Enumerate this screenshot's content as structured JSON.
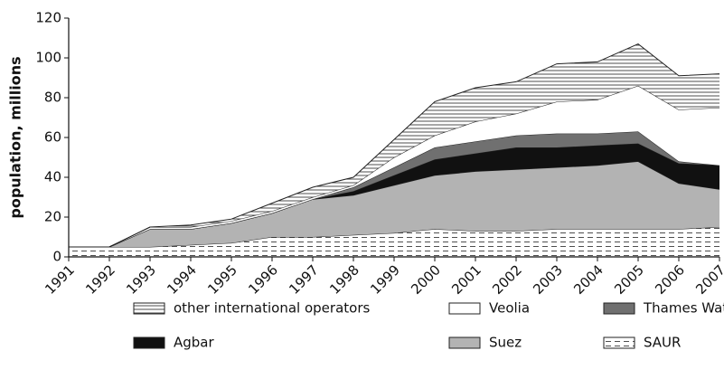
{
  "chart_data": {
    "type": "stacked_area",
    "ylabel": "population, millions",
    "categories": [
      "1991",
      "1992",
      "1993",
      "1994",
      "1995",
      "1996",
      "1997",
      "1998",
      "1999",
      "2000",
      "2001",
      "2002",
      "2003",
      "2004",
      "2005",
      "2006",
      "2007"
    ],
    "ylim": [
      0,
      120
    ],
    "yticks": [
      0,
      20,
      40,
      60,
      80,
      100,
      120
    ],
    "series": [
      {
        "name": "SAUR",
        "color": "#ffffff",
        "pattern": "dashed",
        "values": [
          5,
          5,
          5,
          6,
          7,
          10,
          10,
          11,
          12,
          14,
          13,
          13,
          14,
          14,
          14,
          14,
          15
        ]
      },
      {
        "name": "Suez",
        "color": "#b3b3b3",
        "pattern": "none",
        "values": [
          0,
          0,
          9,
          8,
          10,
          12,
          19,
          20,
          24,
          27,
          30,
          31,
          31,
          32,
          34,
          23,
          19
        ]
      },
      {
        "name": "Agbar",
        "color": "#111111",
        "pattern": "none",
        "values": [
          0,
          0,
          0,
          0,
          0,
          0,
          0,
          2,
          5,
          8,
          9,
          11,
          10,
          10,
          9,
          10,
          12
        ]
      },
      {
        "name": "Thames Water",
        "color": "#707070",
        "pattern": "none",
        "values": [
          0,
          0,
          0,
          0,
          0,
          0,
          0,
          2,
          4,
          6,
          6,
          6,
          7,
          6,
          6,
          1,
          0
        ]
      },
      {
        "name": "Veolia",
        "color": "#ffffff",
        "pattern": "none",
        "values": [
          0,
          0,
          1,
          1,
          1,
          1,
          1,
          1,
          5,
          6,
          10,
          11,
          16,
          17,
          23,
          26,
          29
        ]
      },
      {
        "name": "other international operators",
        "color": "#ffffff",
        "pattern": "horizontal",
        "values": [
          0,
          0,
          0,
          1,
          1,
          4,
          5,
          4,
          9,
          17,
          17,
          16,
          19,
          19,
          21,
          17,
          17
        ]
      }
    ],
    "legend_order": [
      5,
      4,
      3,
      2,
      1,
      0
    ]
  }
}
